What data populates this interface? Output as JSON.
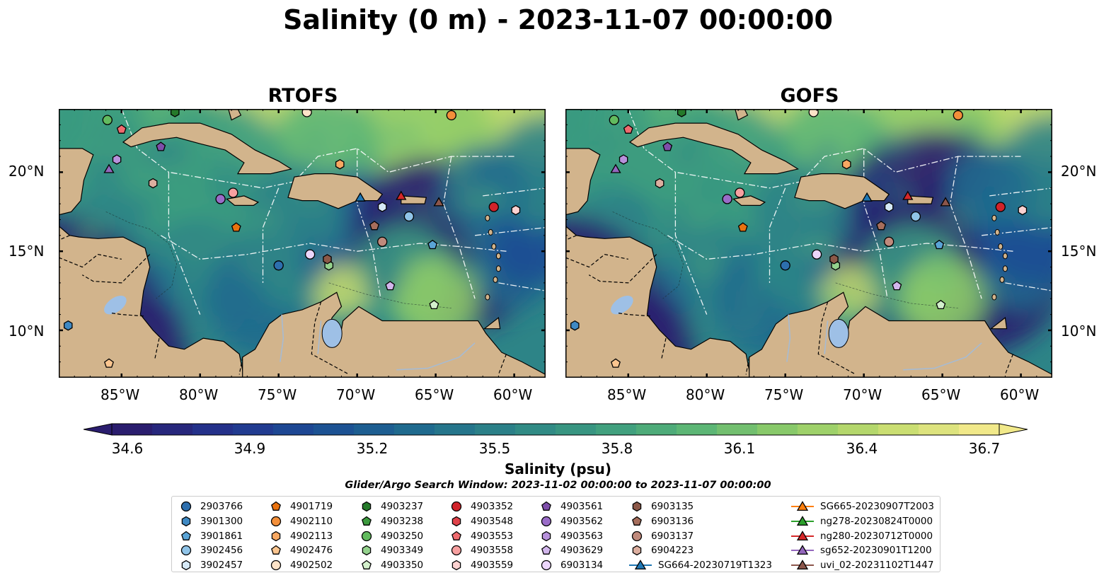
{
  "title": "Salinity (0 m) - 2023-11-07 00:00:00",
  "panels": [
    {
      "title": "RTOFS"
    },
    {
      "title": "GOFS"
    }
  ],
  "axes": {
    "lon_ticks": [
      "85°W",
      "80°W",
      "75°W",
      "70°W",
      "65°W",
      "60°W"
    ],
    "lat_ticks": [
      "20°N",
      "15°N",
      "10°N"
    ],
    "lon_range": [
      -89,
      -58
    ],
    "lat_range": [
      7,
      24
    ]
  },
  "colorbar": {
    "label": "Salinity (psu)",
    "ticks": [
      "34.6",
      "34.9",
      "35.2",
      "35.5",
      "35.8",
      "36.1",
      "36.4",
      "36.7"
    ],
    "range": [
      34.6,
      36.7
    ],
    "colormap": [
      "#2a1d6e",
      "#23348f",
      "#1b4e94",
      "#1f6a8e",
      "#2d8487",
      "#3c9c7f",
      "#5cb675",
      "#8fcc68",
      "#c3dc6e",
      "#f1e98a"
    ]
  },
  "search_window": "Glider/Argo Search Window: 2023-11-02 00:00:00 to 2023-11-07 00:00:00",
  "colors": {
    "land": "#d2b48c",
    "lakes": "#9ec0e6",
    "rivers": "#a7bbd2"
  },
  "legend": [
    [
      {
        "label": "2903766",
        "color": "#2d6fae",
        "marker": "circle"
      },
      {
        "label": "3901300",
        "color": "#3f89c3",
        "marker": "hexagon"
      },
      {
        "label": "3901861",
        "color": "#5aa4d6",
        "marker": "pentagon"
      },
      {
        "label": "3902456",
        "color": "#90c4e8",
        "marker": "circle"
      },
      {
        "label": "3902457",
        "color": "#d6e9f7",
        "marker": "hexagon"
      }
    ],
    [
      {
        "label": "4901719",
        "color": "#e9720f",
        "marker": "pentagon"
      },
      {
        "label": "4902110",
        "color": "#f38f3a",
        "marker": "circle"
      },
      {
        "label": "4902113",
        "color": "#f8a862",
        "marker": "hexagon"
      },
      {
        "label": "4902476",
        "color": "#fbc58f",
        "marker": "pentagon"
      },
      {
        "label": "4902502",
        "color": "#fde3c8",
        "marker": "circle"
      }
    ],
    [
      {
        "label": "4903237",
        "color": "#257a2a",
        "marker": "hexagon"
      },
      {
        "label": "4903238",
        "color": "#3c9a3e",
        "marker": "pentagon"
      },
      {
        "label": "4903250",
        "color": "#62bb5e",
        "marker": "circle"
      },
      {
        "label": "4903349",
        "color": "#94d28d",
        "marker": "hexagon"
      },
      {
        "label": "4903350",
        "color": "#d3f0cc",
        "marker": "pentagon"
      }
    ],
    [
      {
        "label": "4903352",
        "color": "#d1232a",
        "marker": "circle"
      },
      {
        "label": "4903548",
        "color": "#e0424a",
        "marker": "hexagon"
      },
      {
        "label": "4903553",
        "color": "#ef6b6f",
        "marker": "pentagon"
      },
      {
        "label": "4903558",
        "color": "#f7a0a0",
        "marker": "circle"
      },
      {
        "label": "4903559",
        "color": "#fcd2d1",
        "marker": "hexagon"
      }
    ],
    [
      {
        "label": "4903561",
        "color": "#7e4eaa",
        "marker": "pentagon"
      },
      {
        "label": "4903562",
        "color": "#9a6cc8",
        "marker": "circle"
      },
      {
        "label": "4903563",
        "color": "#b791db",
        "marker": "hexagon"
      },
      {
        "label": "4903629",
        "color": "#d2b6ec",
        "marker": "pentagon"
      },
      {
        "label": "6903134",
        "color": "#ecd6fb",
        "marker": "circle"
      }
    ],
    [
      {
        "label": "6903135",
        "color": "#8c5848",
        "marker": "hexagon"
      },
      {
        "label": "6903136",
        "color": "#a66e5c",
        "marker": "pentagon"
      },
      {
        "label": "6903137",
        "color": "#c08a7c",
        "marker": "circle"
      },
      {
        "label": "6904223",
        "color": "#dcae9f",
        "marker": "hexagon"
      },
      {
        "label": "SG664-20230719T1323",
        "color": "#1f77b4",
        "marker": "line-triangle"
      }
    ],
    [
      {
        "label": "SG665-20230907T2003",
        "color": "#ff7f0e",
        "marker": "line-triangle"
      },
      {
        "label": "ng278-20230824T0000",
        "color": "#2ca02c",
        "marker": "line-triangle"
      },
      {
        "label": "ng280-20230712T0000",
        "color": "#d62728",
        "marker": "line-triangle"
      },
      {
        "label": "sg652-20230901T1200",
        "color": "#9467bd",
        "marker": "line-triangle"
      },
      {
        "label": "uvi_02-20231102T1447",
        "color": "#8c564b",
        "marker": "line-triangle"
      }
    ]
  ],
  "observations": [
    {
      "id": "2903766",
      "lon": -75.0,
      "lat": 14.1
    },
    {
      "id": "3901300",
      "lon": -88.4,
      "lat": 10.3
    },
    {
      "id": "3901861",
      "lon": -65.2,
      "lat": 15.4
    },
    {
      "id": "3902456",
      "lon": -66.7,
      "lat": 17.2
    },
    {
      "id": "3902457",
      "lon": -68.4,
      "lat": 17.8
    },
    {
      "id": "4901719",
      "lon": -77.7,
      "lat": 16.5
    },
    {
      "id": "4902110",
      "lon": -64.0,
      "lat": 23.6
    },
    {
      "id": "4902113",
      "lon": -71.1,
      "lat": 20.5
    },
    {
      "id": "4902476",
      "lon": -85.8,
      "lat": 7.9
    },
    {
      "id": "4902502",
      "lon": -73.2,
      "lat": 23.8
    },
    {
      "id": "4903237",
      "lon": -81.6,
      "lat": 23.8
    },
    {
      "id": "4903250",
      "lon": -85.9,
      "lat": 23.3
    },
    {
      "id": "4903349",
      "lon": -71.8,
      "lat": 14.1
    },
    {
      "id": "4903350",
      "lon": -65.1,
      "lat": 11.6
    },
    {
      "id": "4903352",
      "lon": -61.3,
      "lat": 17.8
    },
    {
      "id": "4903553",
      "lon": -85.0,
      "lat": 22.7
    },
    {
      "id": "4903558",
      "lon": -77.9,
      "lat": 18.7
    },
    {
      "id": "4903559",
      "lon": -59.9,
      "lat": 17.6
    },
    {
      "id": "4903561",
      "lon": -82.5,
      "lat": 21.6
    },
    {
      "id": "4903562",
      "lon": -78.7,
      "lat": 18.3
    },
    {
      "id": "4903563",
      "lon": -85.3,
      "lat": 20.8
    },
    {
      "id": "4903629",
      "lon": -67.9,
      "lat": 12.8
    },
    {
      "id": "6903134",
      "lon": -73.0,
      "lat": 14.8
    },
    {
      "id": "6903135",
      "lon": -71.9,
      "lat": 14.5
    },
    {
      "id": "6903136",
      "lon": -68.9,
      "lat": 16.6
    },
    {
      "id": "6903137",
      "lon": -68.4,
      "lat": 15.6
    },
    {
      "id": "6904223",
      "lon": -83.0,
      "lat": 19.3
    },
    {
      "id": "SG664-20230719T1323",
      "lon": -69.8,
      "lat": 18.4
    },
    {
      "id": "ng280-20230712T0000",
      "lon": -67.2,
      "lat": 18.5
    },
    {
      "id": "sg652-20230901T1200",
      "lon": -85.8,
      "lat": 20.2
    },
    {
      "id": "uvi_02-20231102T1447",
      "lon": -64.8,
      "lat": 18.1
    }
  ]
}
